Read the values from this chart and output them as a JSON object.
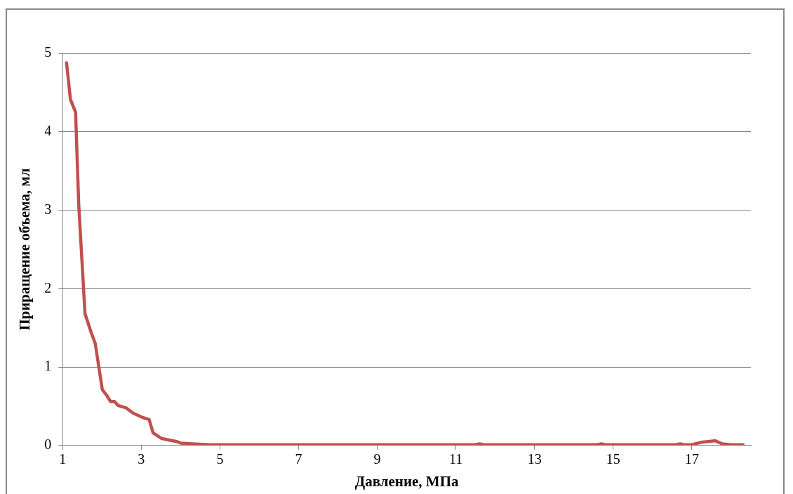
{
  "chart_data": {
    "type": "line",
    "xlabel": "Давление, МПа",
    "ylabel": "Приращение объема, мл",
    "xlim": [
      1,
      18.5
    ],
    "xticks": [
      1,
      3,
      5,
      7,
      9,
      11,
      13,
      15,
      17
    ],
    "ylim": [
      0,
      5
    ],
    "yticks": [
      0,
      1,
      2,
      3,
      4,
      5
    ],
    "grid": "y",
    "legend": false,
    "marker": "none",
    "line_style": "solid",
    "series": [
      {
        "color": "#c0504d",
        "x": [
          1.1,
          1.2,
          1.33,
          1.41,
          1.57,
          1.72,
          1.83,
          2.01,
          2.12,
          2.22,
          2.32,
          2.41,
          2.61,
          2.8,
          3.02,
          3.2,
          3.3,
          3.51,
          3.7,
          3.9,
          4.0,
          4.3,
          4.72,
          6,
          8,
          10,
          11.5,
          11.6,
          11.7,
          13,
          14.6,
          14.7,
          14.8,
          16,
          16.6,
          16.7,
          16.8,
          17,
          17.24,
          17.59,
          17.77,
          18,
          18.3
        ],
        "values": [
          4.88,
          4.41,
          4.25,
          3.07,
          1.68,
          1.45,
          1.3,
          0.71,
          0.64,
          0.56,
          0.56,
          0.51,
          0.48,
          0.41,
          0.36,
          0.33,
          0.16,
          0.09,
          0.07,
          0.05,
          0.03,
          0.02,
          0.01,
          0.01,
          0.01,
          0.01,
          0.01,
          0.02,
          0.01,
          0.01,
          0.01,
          0.02,
          0.01,
          0.01,
          0.01,
          0.02,
          0.01,
          0.01,
          0.04,
          0.06,
          0.02,
          0.01,
          0.01
        ]
      }
    ]
  }
}
